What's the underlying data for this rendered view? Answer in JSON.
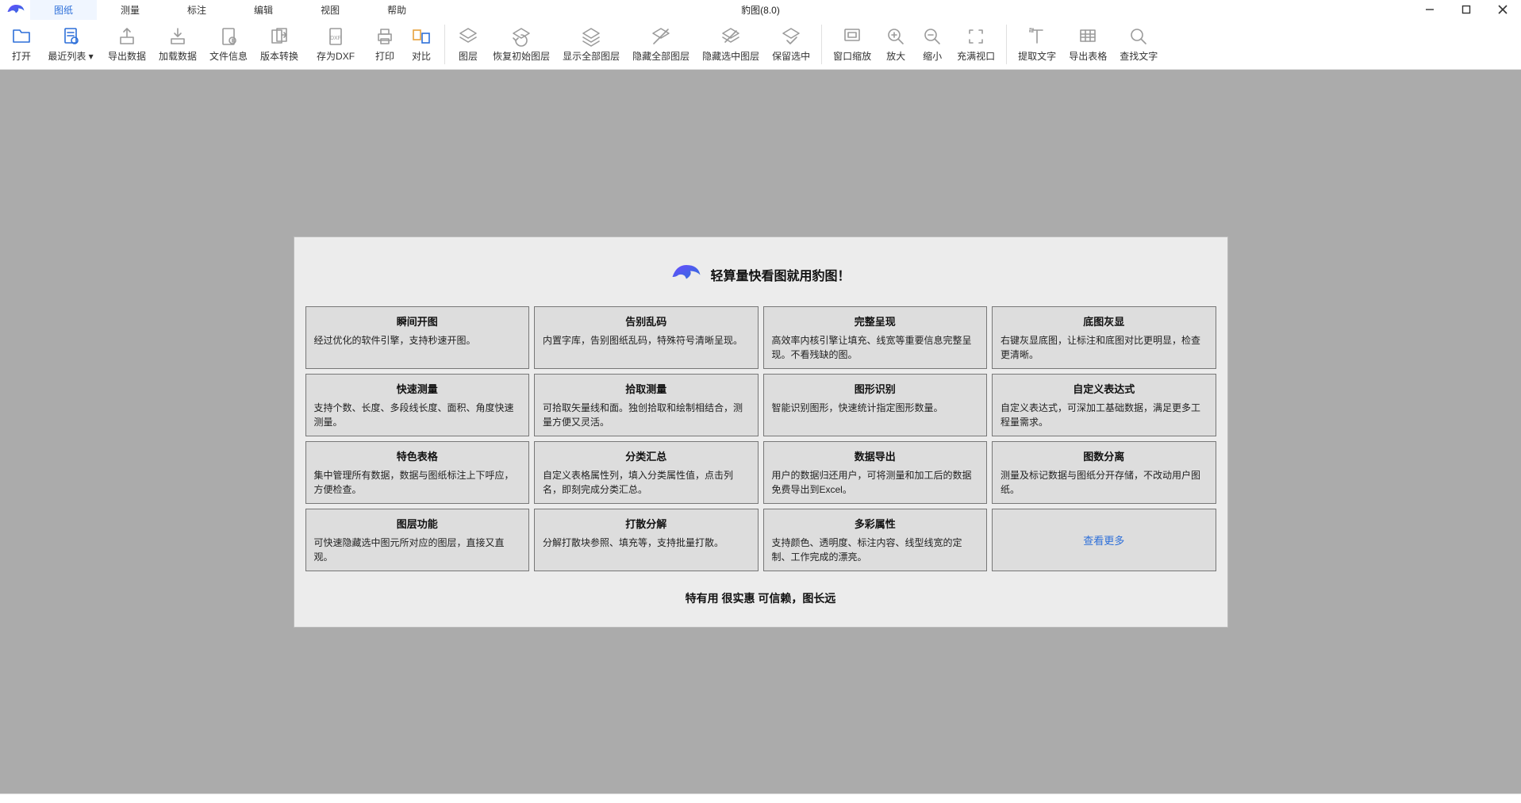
{
  "app": {
    "title": "豹图(8.0)"
  },
  "menu": [
    "图纸",
    "测量",
    "标注",
    "编辑",
    "视图",
    "帮助"
  ],
  "menu_active_index": 0,
  "toolbar_groups": [
    [
      "打开",
      "最近列表 ▾",
      "导出数据",
      "加载数据",
      "文件信息",
      "版本转换",
      "存为DXF",
      "打印",
      "对比"
    ],
    [
      "图层",
      "恢复初始图层",
      "显示全部图层",
      "隐藏全部图层",
      "隐藏选中图层",
      "保留选中"
    ],
    [
      "窗口缩放",
      "放大",
      "缩小",
      "充满视口"
    ],
    [
      "提取文字",
      "导出表格",
      "查找文字"
    ]
  ],
  "toolbar_icons": {
    "打开": "folder",
    "最近列表 ▾": "doc-recent",
    "导出数据": "export",
    "加载数据": "download",
    "文件信息": "file-info",
    "版本转换": "version",
    "存为DXF": "dxf",
    "打印": "printer",
    "对比": "compare",
    "图层": "layers",
    "恢复初始图层": "layers-reset",
    "显示全部图层": "layers-show",
    "隐藏全部图层": "layers-hide",
    "隐藏选中图层": "layers-hide-sel",
    "保留选中": "layers-keep",
    "窗口缩放": "zoom-window",
    "放大": "zoom-in",
    "缩小": "zoom-out",
    "充满视口": "zoom-fit",
    "提取文字": "extract-text",
    "导出表格": "export-table",
    "查找文字": "find-text"
  },
  "toolbar_colored": [
    "打开",
    "最近列表 ▾",
    "对比"
  ],
  "welcome": {
    "headline": "轻算量快看图就用豹图！",
    "cards": [
      {
        "title": "瞬间开图",
        "desc": "经过优化的软件引擎，支持秒速开图。"
      },
      {
        "title": "告别乱码",
        "desc": "内置字库，告别图纸乱码，特殊符号清晰呈现。"
      },
      {
        "title": "完整呈现",
        "desc": "高效率内核引擎让填充、线宽等重要信息完整呈现。不看残缺的图。"
      },
      {
        "title": "底图灰显",
        "desc": "右键灰显底图，让标注和底图对比更明显，检查更清晰。"
      },
      {
        "title": "快速测量",
        "desc": "支持个数、长度、多段线长度、面积、角度快速测量。"
      },
      {
        "title": "拾取测量",
        "desc": "可拾取矢量线和面。独创拾取和绘制相结合，测量方便又灵活。"
      },
      {
        "title": "图形识别",
        "desc": "智能识别图形，快速统计指定图形数量。"
      },
      {
        "title": "自定义表达式",
        "desc": "自定义表达式，可深加工基础数据，满足更多工程量需求。"
      },
      {
        "title": "特色表格",
        "desc": "集中管理所有数据，数据与图纸标注上下呼应，方便检查。"
      },
      {
        "title": "分类汇总",
        "desc": "自定义表格属性列，填入分类属性值，点击列名，即刻完成分类汇总。"
      },
      {
        "title": "数据导出",
        "desc": "用户的数据归还用户，可将测量和加工后的数据免费导出到Excel。"
      },
      {
        "title": "图数分离",
        "desc": "测量及标记数据与图纸分开存储，不改动用户图纸。"
      },
      {
        "title": "图层功能",
        "desc": "可快速隐藏选中图元所对应的图层，直接又直观。"
      },
      {
        "title": "打散分解",
        "desc": "分解打散块参照、填充等，支持批量打散。"
      },
      {
        "title": "多彩属性",
        "desc": "支持颜色、透明度、标注内容、线型线宽的定制、工作完成的漂亮。"
      }
    ],
    "more_label": "查看更多",
    "footer": "特有用 很实惠 可信赖，图长远"
  },
  "colors": {
    "accent_blue": "#2d6fd9",
    "icon_grey": "#9a9a9a",
    "icon_orange": "#e8a23c",
    "logo_grad_a": "#6a4cff",
    "logo_grad_b": "#2d6fd9"
  }
}
